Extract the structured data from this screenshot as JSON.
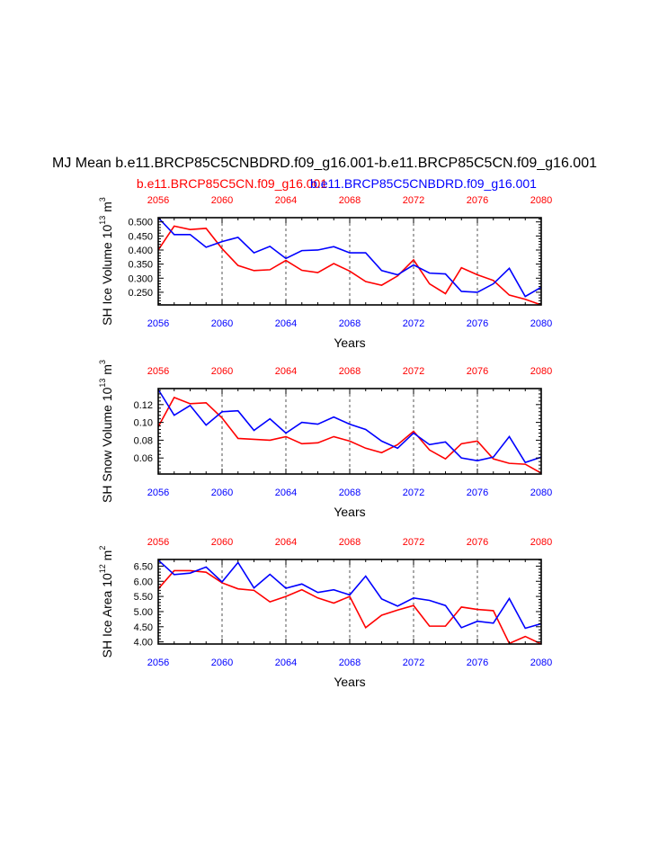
{
  "title": "MJ Mean b.e11.BRCP85C5CNBDRD.f09_g16.001-b.e11.BRCP85C5CN.f09_g16.001",
  "legend": {
    "red_label": "b.e11.BRCP85C5CN.f09_g16.001",
    "blue_label": "b.e11.BRCP85C5CNBDRD.f09_g16.001"
  },
  "colors": {
    "red": "#ff0000",
    "blue": "#0000ff",
    "axis": "#000000",
    "grid": "#555555"
  },
  "chart_data": [
    {
      "type": "line",
      "ylabel": "SH Ice Volume 10^13 m^3",
      "ylabel_main": "SH Ice Volume 10",
      "ylabel_sup1": "13",
      "ylabel_unit": " m",
      "ylabel_sup2": "3",
      "xlabel": "Years",
      "xlim": [
        2056,
        2080
      ],
      "ylim": [
        0.205,
        0.515
      ],
      "yticks": [
        0.25,
        0.3,
        0.35,
        0.4,
        0.45,
        0.5
      ],
      "ytick_labels": [
        "0.250",
        "0.300",
        "0.350",
        "0.400",
        "0.450",
        "0.500"
      ],
      "xticks": [
        2056,
        2060,
        2064,
        2068,
        2072,
        2076,
        2080
      ],
      "xtick_labels": [
        "2056",
        "2060",
        "2064",
        "2068",
        "2072",
        "2076",
        "2080"
      ],
      "gridlines_x": [
        2060,
        2064,
        2068,
        2072,
        2076
      ],
      "x": [
        2056,
        2057,
        2058,
        2059,
        2060,
        2061,
        2062,
        2063,
        2064,
        2065,
        2066,
        2067,
        2068,
        2069,
        2070,
        2071,
        2072,
        2073,
        2074,
        2075,
        2076,
        2077,
        2078,
        2079,
        2080
      ],
      "series": [
        {
          "name": "b.e11.BRCP85C5CN.f09_g16.001",
          "color": "#ff0000",
          "values": [
            0.4,
            0.485,
            0.473,
            0.477,
            0.405,
            0.345,
            0.327,
            0.33,
            0.363,
            0.328,
            0.32,
            0.352,
            0.325,
            0.288,
            0.275,
            0.308,
            0.365,
            0.28,
            0.245,
            0.337,
            0.312,
            0.292,
            0.24,
            0.225,
            0.205
          ]
        },
        {
          "name": "b.e11.BRCP85C5CNBDRD.f09_g16.001",
          "color": "#0000ff",
          "values": [
            0.515,
            0.455,
            0.455,
            0.41,
            0.43,
            0.445,
            0.39,
            0.413,
            0.37,
            0.398,
            0.4,
            0.412,
            0.39,
            0.39,
            0.327,
            0.312,
            0.347,
            0.318,
            0.315,
            0.253,
            0.25,
            0.28,
            0.335,
            0.235,
            0.268
          ]
        }
      ]
    },
    {
      "type": "line",
      "ylabel": "SH Snow Volume 10^13 m^3",
      "ylabel_main": "SH Snow Volume 10",
      "ylabel_sup1": "13",
      "ylabel_unit": " m",
      "ylabel_sup2": "3",
      "xlabel": "Years",
      "xlim": [
        2056,
        2080
      ],
      "ylim": [
        0.042,
        0.138
      ],
      "yticks": [
        0.06,
        0.08,
        0.1,
        0.12
      ],
      "ytick_labels": [
        "0.06",
        "0.08",
        "0.10",
        "0.12"
      ],
      "xticks": [
        2056,
        2060,
        2064,
        2068,
        2072,
        2076,
        2080
      ],
      "xtick_labels": [
        "2056",
        "2060",
        "2064",
        "2068",
        "2072",
        "2076",
        "2080"
      ],
      "gridlines_x": [
        2060,
        2064,
        2068,
        2072,
        2076
      ],
      "x": [
        2056,
        2057,
        2058,
        2059,
        2060,
        2061,
        2062,
        2063,
        2064,
        2065,
        2066,
        2067,
        2068,
        2069,
        2070,
        2071,
        2072,
        2073,
        2074,
        2075,
        2076,
        2077,
        2078,
        2079,
        2080
      ],
      "series": [
        {
          "name": "b.e11.BRCP85C5CN.f09_g16.001",
          "color": "#ff0000",
          "values": [
            0.095,
            0.128,
            0.121,
            0.122,
            0.105,
            0.082,
            0.081,
            0.08,
            0.084,
            0.076,
            0.077,
            0.084,
            0.079,
            0.071,
            0.066,
            0.075,
            0.09,
            0.069,
            0.059,
            0.076,
            0.079,
            0.059,
            0.054,
            0.053,
            0.043
          ]
        },
        {
          "name": "b.e11.BRCP85C5CNBDRD.f09_g16.001",
          "color": "#0000ff",
          "values": [
            0.137,
            0.108,
            0.119,
            0.097,
            0.112,
            0.113,
            0.091,
            0.104,
            0.088,
            0.1,
            0.098,
            0.106,
            0.098,
            0.092,
            0.079,
            0.071,
            0.088,
            0.075,
            0.078,
            0.06,
            0.057,
            0.061,
            0.084,
            0.055,
            0.061
          ]
        }
      ]
    },
    {
      "type": "line",
      "ylabel": "SH Ice Area 10^12 m^2",
      "ylabel_main": "SH Ice Area 10",
      "ylabel_sup1": "12",
      "ylabel_unit": " m",
      "ylabel_sup2": "2",
      "xlabel": "Years",
      "xlim": [
        2056,
        2080
      ],
      "ylim": [
        3.93,
        6.72
      ],
      "yticks": [
        4.0,
        4.5,
        5.0,
        5.5,
        6.0,
        6.5
      ],
      "ytick_labels": [
        "4.00",
        "4.50",
        "5.00",
        "5.50",
        "6.00",
        "6.50"
      ],
      "xticks": [
        2056,
        2060,
        2064,
        2068,
        2072,
        2076,
        2080
      ],
      "xtick_labels": [
        "2056",
        "2060",
        "2064",
        "2068",
        "2072",
        "2076",
        "2080"
      ],
      "gridlines_x": [
        2060,
        2064,
        2068,
        2072,
        2076
      ],
      "x": [
        2056,
        2057,
        2058,
        2059,
        2060,
        2061,
        2062,
        2063,
        2064,
        2065,
        2066,
        2067,
        2068,
        2069,
        2070,
        2071,
        2072,
        2073,
        2074,
        2075,
        2076,
        2077,
        2078,
        2079,
        2080
      ],
      "series": [
        {
          "name": "b.e11.BRCP85C5CN.f09_g16.001",
          "color": "#ff0000",
          "values": [
            5.75,
            6.35,
            6.35,
            6.3,
            5.95,
            5.75,
            5.7,
            5.32,
            5.5,
            5.72,
            5.45,
            5.28,
            5.5,
            4.47,
            4.88,
            5.05,
            5.2,
            4.52,
            4.52,
            5.15,
            5.07,
            5.03,
            3.95,
            4.18,
            3.93
          ]
        },
        {
          "name": "b.e11.BRCP85C5CNBDRD.f09_g16.001",
          "color": "#0000ff",
          "values": [
            6.7,
            6.22,
            6.27,
            6.47,
            5.98,
            6.62,
            5.78,
            6.23,
            5.77,
            5.91,
            5.63,
            5.72,
            5.55,
            6.17,
            5.42,
            5.18,
            5.45,
            5.37,
            5.2,
            4.47,
            4.68,
            4.62,
            5.43,
            4.45,
            4.6
          ]
        }
      ]
    }
  ]
}
